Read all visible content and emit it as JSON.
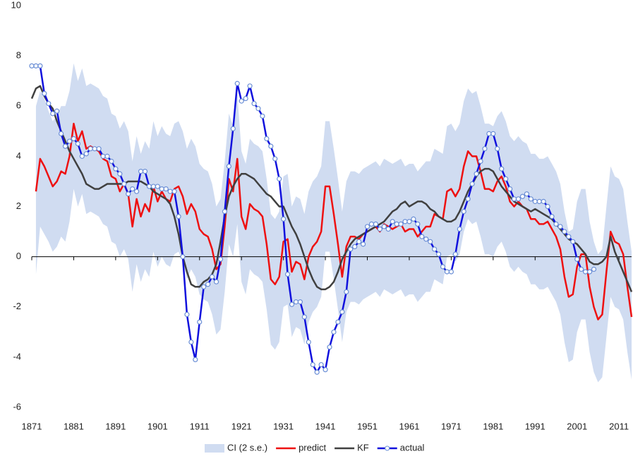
{
  "chart_data": {
    "type": "line",
    "x": [
      1871,
      1872,
      1873,
      1874,
      1875,
      1876,
      1877,
      1878,
      1879,
      1880,
      1881,
      1882,
      1883,
      1884,
      1885,
      1886,
      1887,
      1888,
      1889,
      1890,
      1891,
      1892,
      1893,
      1894,
      1895,
      1896,
      1897,
      1898,
      1899,
      1900,
      1901,
      1902,
      1903,
      1904,
      1905,
      1906,
      1907,
      1908,
      1909,
      1910,
      1911,
      1912,
      1913,
      1914,
      1915,
      1916,
      1917,
      1918,
      1919,
      1920,
      1921,
      1922,
      1923,
      1924,
      1925,
      1926,
      1927,
      1928,
      1929,
      1930,
      1931,
      1932,
      1933,
      1934,
      1935,
      1936,
      1937,
      1938,
      1939,
      1940,
      1941,
      1942,
      1943,
      1944,
      1945,
      1946,
      1947,
      1948,
      1949,
      1950,
      1951,
      1952,
      1953,
      1954,
      1955,
      1956,
      1957,
      1958,
      1959,
      1960,
      1961,
      1962,
      1963,
      1964,
      1965,
      1966,
      1967,
      1968,
      1969,
      1970,
      1971,
      1972,
      1973,
      1974,
      1975,
      1976,
      1977,
      1978,
      1979,
      1980,
      1981,
      1982,
      1983,
      1984,
      1985,
      1986,
      1987,
      1988,
      1989,
      1990,
      1991,
      1992,
      1993,
      1994,
      1995,
      1996,
      1997,
      1998,
      1999,
      2000,
      2001,
      2002,
      2003,
      2004,
      2005,
      2006,
      2007,
      2008,
      2009,
      2010,
      2011,
      2012,
      2013,
      2014
    ],
    "xlim": [
      1871,
      2014
    ],
    "xticks": [
      1871,
      1881,
      1891,
      1901,
      1911,
      1921,
      1931,
      1941,
      1951,
      1961,
      1971,
      1981,
      1991,
      2001,
      2011
    ],
    "ylim": [
      -6,
      10
    ],
    "yticks": [
      -6,
      -4,
      -2,
      0,
      2,
      4,
      6,
      8,
      10
    ],
    "series": [
      {
        "name": "CI (2 s.e.)",
        "color": "#d0dcf1",
        "upper": [
          null,
          6.0,
          6.6,
          6.3,
          5.8,
          5.4,
          5.6,
          6.0,
          6.0,
          6.6,
          7.7,
          7.0,
          7.5,
          6.8,
          6.9,
          6.8,
          6.7,
          6.4,
          6.3,
          5.7,
          5.6,
          5.1,
          5.4,
          5.0,
          3.8,
          4.8,
          4.1,
          4.6,
          4.3,
          5.4,
          4.8,
          5.2,
          4.9,
          4.8,
          5.3,
          5.4,
          5.0,
          4.3,
          4.7,
          4.4,
          3.7,
          3.5,
          3.4,
          2.9,
          2.0,
          2.3,
          3.8,
          5.7,
          5.2,
          6.5,
          4.2,
          3.7,
          4.7,
          4.5,
          4.4,
          4.2,
          3.1,
          1.7,
          1.5,
          1.8,
          3.2,
          3.3,
          2.0,
          2.4,
          2.3,
          1.7,
          2.6,
          3.0,
          3.2,
          3.6,
          5.4,
          5.4,
          4.3,
          3.1,
          1.8,
          3.0,
          3.4,
          3.4,
          3.3,
          3.5,
          3.6,
          3.7,
          3.8,
          3.6,
          3.9,
          3.8,
          3.7,
          3.8,
          3.9,
          3.6,
          3.7,
          3.7,
          3.4,
          3.6,
          3.8,
          3.8,
          4.3,
          4.2,
          4.1,
          5.2,
          5.3,
          5.0,
          5.3,
          6.2,
          6.7,
          6.5,
          6.6,
          6.0,
          5.3,
          5.3,
          5.2,
          5.6,
          5.8,
          5.4,
          4.8,
          4.6,
          4.8,
          4.6,
          4.5,
          4.1,
          4.1,
          3.9,
          3.9,
          4.0,
          3.7,
          3.4,
          2.9,
          1.8,
          1.0,
          1.1,
          2.2,
          2.7,
          2.7,
          1.4,
          0.6,
          0.1,
          0.3,
          2.0,
          3.6,
          3.2,
          3.1,
          2.7,
          1.4,
          0.2
        ],
        "lower": [
          null,
          -0.7,
          1.2,
          0.9,
          0.6,
          0.2,
          0.4,
          0.8,
          0.6,
          1.4,
          2.7,
          2.0,
          2.5,
          1.7,
          1.8,
          1.7,
          1.6,
          1.3,
          1.2,
          0.6,
          0.5,
          0.0,
          0.3,
          -0.1,
          -1.4,
          -0.3,
          -1.0,
          -0.5,
          -0.8,
          0.2,
          -0.4,
          0.0,
          -0.3,
          -0.4,
          0.1,
          0.2,
          -0.2,
          -0.9,
          -0.5,
          -0.8,
          -1.5,
          -1.7,
          -1.8,
          -2.3,
          -3.1,
          -2.9,
          -1.4,
          0.5,
          0.0,
          1.3,
          -1.0,
          -1.5,
          -0.5,
          -0.7,
          -0.8,
          -1.0,
          -2.1,
          -3.5,
          -3.7,
          -3.4,
          -2.0,
          -1.9,
          -3.2,
          -2.8,
          -2.9,
          -3.5,
          -2.6,
          -2.2,
          -2.0,
          -1.6,
          0.2,
          0.2,
          -0.9,
          -2.1,
          -3.4,
          -2.2,
          -1.8,
          -1.8,
          -1.9,
          -1.7,
          -1.6,
          -1.5,
          -1.4,
          -1.6,
          -1.3,
          -1.4,
          -1.5,
          -1.4,
          -1.3,
          -1.6,
          -1.5,
          -1.5,
          -1.8,
          -1.6,
          -1.4,
          -1.4,
          -0.9,
          -1.0,
          -1.1,
          0.0,
          0.1,
          -0.2,
          0.1,
          1.0,
          1.5,
          1.3,
          1.4,
          0.8,
          0.1,
          0.1,
          0.0,
          0.4,
          0.6,
          0.2,
          -0.4,
          -0.6,
          -0.4,
          -0.6,
          -0.7,
          -1.1,
          -1.1,
          -1.3,
          -1.3,
          -1.2,
          -1.5,
          -1.8,
          -2.3,
          -3.4,
          -4.2,
          -4.1,
          -3.0,
          -2.5,
          -2.5,
          -3.8,
          -4.6,
          -5.0,
          -4.8,
          -3.2,
          -1.6,
          -2.0,
          -2.1,
          -2.5,
          -3.8,
          -4.9
        ]
      },
      {
        "name": "predict",
        "color": "#ee1111",
        "values": [
          null,
          2.6,
          3.9,
          3.6,
          3.2,
          2.8,
          3.0,
          3.4,
          3.3,
          4.0,
          5.3,
          4.6,
          5.0,
          4.3,
          4.4,
          4.3,
          4.2,
          3.9,
          3.8,
          3.2,
          3.1,
          2.6,
          2.9,
          2.5,
          1.2,
          2.3,
          1.6,
          2.1,
          1.8,
          2.8,
          2.2,
          2.6,
          2.3,
          2.2,
          2.7,
          2.8,
          2.4,
          1.7,
          2.1,
          1.8,
          1.1,
          0.9,
          0.8,
          0.3,
          -0.5,
          -0.3,
          1.2,
          3.1,
          2.6,
          3.9,
          1.6,
          1.1,
          2.1,
          1.9,
          1.8,
          1.6,
          0.5,
          -0.9,
          -1.1,
          -0.8,
          0.6,
          0.7,
          -0.6,
          -0.2,
          -0.3,
          -0.9,
          0.0,
          0.4,
          0.6,
          1.0,
          2.8,
          2.8,
          1.7,
          0.5,
          -0.8,
          0.4,
          0.8,
          0.8,
          0.7,
          0.9,
          1.0,
          1.1,
          1.2,
          1.0,
          1.3,
          1.2,
          1.1,
          1.2,
          1.3,
          1.0,
          1.1,
          1.1,
          0.8,
          1.0,
          1.2,
          1.2,
          1.7,
          1.6,
          1.5,
          2.6,
          2.7,
          2.4,
          2.7,
          3.6,
          4.2,
          4.0,
          4.0,
          3.4,
          2.7,
          2.7,
          2.6,
          3.0,
          3.2,
          2.8,
          2.2,
          2.0,
          2.2,
          2.0,
          1.9,
          1.5,
          1.5,
          1.3,
          1.3,
          1.4,
          1.1,
          0.8,
          0.3,
          -0.8,
          -1.6,
          -1.5,
          -0.4,
          0.1,
          0.1,
          -1.2,
          -2.0,
          -2.5,
          -2.3,
          -0.6,
          1.0,
          0.6,
          0.5,
          0.1,
          -1.2,
          -2.4
        ]
      },
      {
        "name": "KF",
        "color": "#404040",
        "values": [
          6.3,
          6.7,
          6.8,
          6.4,
          6.1,
          5.9,
          5.4,
          5.0,
          4.6,
          4.2,
          3.9,
          3.6,
          3.3,
          2.9,
          2.8,
          2.7,
          2.7,
          2.8,
          2.9,
          2.9,
          2.9,
          2.9,
          2.9,
          3.0,
          3.0,
          3.0,
          3.0,
          2.9,
          2.8,
          2.6,
          2.5,
          2.4,
          2.3,
          2.1,
          1.6,
          0.9,
          0.0,
          -0.6,
          -1.1,
          -1.2,
          -1.2,
          -1.0,
          -0.9,
          -0.7,
          -0.3,
          0.6,
          1.6,
          2.4,
          2.8,
          3.1,
          3.3,
          3.3,
          3.2,
          3.1,
          2.9,
          2.7,
          2.5,
          2.4,
          2.2,
          2.0,
          2.0,
          1.6,
          1.2,
          0.9,
          0.5,
          0.0,
          -0.5,
          -0.9,
          -1.2,
          -1.3,
          -1.3,
          -1.2,
          -1.0,
          -0.6,
          -0.1,
          0.2,
          0.5,
          0.7,
          0.8,
          0.9,
          1.0,
          1.1,
          1.2,
          1.3,
          1.4,
          1.6,
          1.8,
          1.9,
          2.1,
          2.2,
          2.0,
          2.1,
          2.2,
          2.2,
          2.1,
          1.9,
          1.8,
          1.6,
          1.5,
          1.4,
          1.4,
          1.5,
          1.8,
          2.2,
          2.6,
          2.9,
          3.2,
          3.4,
          3.5,
          3.5,
          3.4,
          3.1,
          2.8,
          2.6,
          2.4,
          2.2,
          2.1,
          2.0,
          1.9,
          1.8,
          1.9,
          1.8,
          1.7,
          1.6,
          1.5,
          1.3,
          1.1,
          0.9,
          0.7,
          0.6,
          0.5,
          0.3,
          0.1,
          -0.2,
          -0.3,
          -0.3,
          -0.2,
          0.0,
          0.8,
          0.2,
          -0.2,
          -0.6,
          -1.0,
          -1.4
        ]
      },
      {
        "name": "actual",
        "color": "#1111dd",
        "markers": true,
        "values": [
          7.6,
          7.6,
          7.6,
          6.5,
          6.1,
          5.7,
          5.8,
          4.9,
          4.4,
          4.6,
          4.7,
          4.5,
          4.0,
          4.1,
          4.3,
          4.3,
          4.3,
          4.0,
          4.0,
          3.8,
          3.5,
          3.3,
          2.9,
          2.5,
          2.7,
          2.6,
          3.4,
          3.4,
          2.8,
          2.8,
          2.8,
          2.7,
          2.7,
          2.6,
          2.6,
          1.6,
          0.0,
          -2.3,
          -3.4,
          -4.1,
          -2.6,
          -1.2,
          -1.1,
          -0.8,
          -1.0,
          -0.1,
          1.8,
          3.6,
          5.1,
          6.9,
          6.2,
          6.3,
          6.8,
          6.1,
          5.9,
          5.6,
          4.7,
          4.4,
          3.9,
          3.1,
          1.5,
          -0.7,
          -1.9,
          -1.8,
          -1.8,
          -2.4,
          -3.4,
          -4.3,
          -4.6,
          -4.3,
          -4.5,
          -3.6,
          -3.0,
          -2.6,
          -2.2,
          -1.4,
          0.3,
          0.4,
          0.6,
          0.5,
          1.2,
          1.3,
          1.3,
          1.1,
          1.2,
          1.1,
          1.4,
          1.3,
          1.3,
          1.4,
          1.4,
          1.5,
          1.3,
          0.8,
          0.7,
          0.6,
          0.3,
          0.1,
          -0.4,
          -0.6,
          -0.6,
          0.1,
          1.1,
          1.8,
          2.3,
          2.9,
          3.3,
          3.8,
          4.3,
          4.9,
          4.9,
          4.3,
          3.5,
          3.1,
          2.7,
          2.3,
          2.3,
          2.4,
          2.5,
          2.3,
          2.2,
          2.2,
          2.2,
          2.0,
          1.6,
          1.3,
          1.2,
          1.0,
          0.8,
          0.6,
          -0.1,
          -0.5,
          -0.6,
          -0.6,
          -0.5,
          null,
          null,
          null,
          null,
          null,
          null,
          null,
          null,
          null
        ]
      }
    ]
  }
}
